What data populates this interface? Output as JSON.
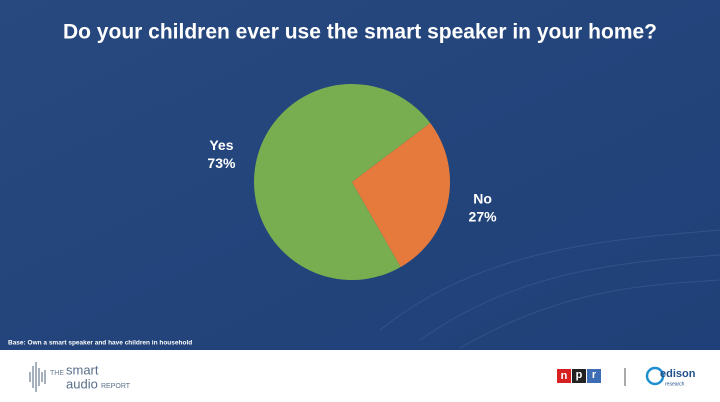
{
  "chart_data": {
    "type": "pie",
    "title": "Do your children ever use the smart speaker in your home?",
    "categories": [
      "Yes",
      "No"
    ],
    "values": [
      73,
      27
    ],
    "value_labels": [
      "73%",
      "27%"
    ],
    "colors": [
      "#78ad50",
      "#e67a3c"
    ],
    "note": "Base: Own a smart speaker and have children in household"
  },
  "footer": {
    "report_logo": {
      "the": "THE",
      "smart": "smart",
      "audio": "audio",
      "report": "REPORT"
    },
    "npr_logo": [
      "n",
      "p",
      "r"
    ],
    "edison_logo": {
      "name": "edison",
      "sub": "research"
    }
  }
}
